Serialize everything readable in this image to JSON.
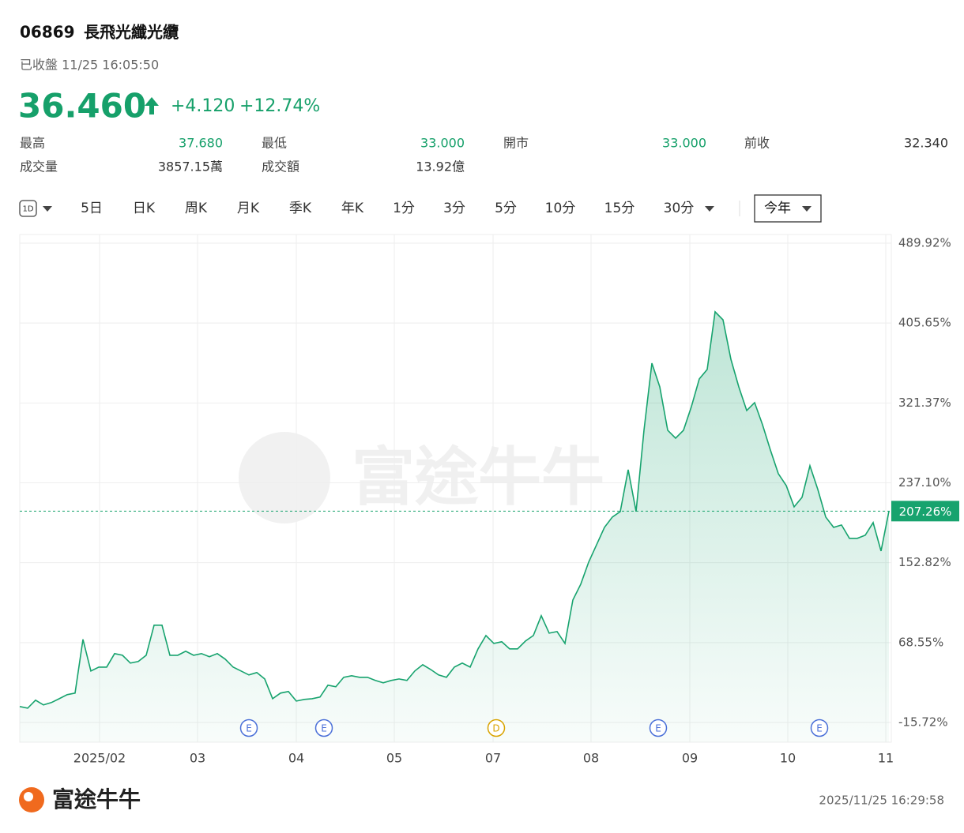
{
  "header": {
    "code": "06869",
    "name": "長飛光纖光纜",
    "status": "已收盤 11/25 16:05:50",
    "price": "36.460",
    "change": "+4.120",
    "change_pct": "+12.74%"
  },
  "stats": [
    {
      "label": "最高",
      "value": "37.680",
      "color": "#16a06a"
    },
    {
      "label": "最低",
      "value": "33.000",
      "color": "#16a06a"
    },
    {
      "label": "開市",
      "value": "33.000",
      "color": "#16a06a"
    },
    {
      "label": "前收",
      "value": "32.340",
      "color": "#333333"
    },
    {
      "label": "成交量",
      "value": "3857.15萬",
      "color": "#333333"
    },
    {
      "label": "成交額",
      "value": "13.92億",
      "color": "#333333"
    }
  ],
  "period_icon": "1D",
  "tabs": [
    "5日",
    "日K",
    "周K",
    "月K",
    "季K",
    "年K",
    "1分",
    "3分",
    "5分",
    "10分",
    "15分",
    "30分"
  ],
  "selected_tab": "今年",
  "watermark": "富途牛牛",
  "chart_data": {
    "type": "line",
    "color": "#17a36e",
    "values": [
      1.1,
      -0.6,
      7.8,
      2.8,
      5.3,
      9.4,
      13.6,
      15.3,
      71.9,
      38.6,
      42.7,
      42.7,
      56.9,
      55.2,
      46.9,
      48.6,
      55.2,
      86.9,
      86.9,
      55.2,
      55.2,
      59.4,
      55.2,
      56.9,
      53.6,
      56.9,
      51.1,
      42.7,
      38.6,
      34.4,
      36.9,
      30.2,
      9.4,
      15.3,
      16.9,
      6.9,
      8.6,
      9.4,
      11.1,
      23.6,
      21.9,
      31.9,
      33.6,
      31.9,
      31.9,
      28.6,
      26.1,
      28.6,
      30.2,
      28.6,
      38.6,
      45.2,
      40.2,
      34.4,
      31.9,
      42.7,
      46.9,
      42.7,
      61.9,
      76.0,
      67.7,
      69.4,
      61.9,
      61.9,
      70.2,
      76.0,
      96.9,
      78.5,
      80.2,
      67.7,
      113.5,
      130.2,
      153.5,
      171.8,
      190.1,
      201.0,
      206.8,
      250.9,
      206.8,
      292.6,
      363.3,
      338.3,
      292.6,
      284.2,
      292.6,
      317.5,
      346.7,
      356.7,
      417.5,
      409.1,
      367.5,
      338.3,
      313.4,
      321.7,
      298.4,
      271.7,
      246.8,
      234.3,
      211.8,
      221.8,
      255.1,
      230.1,
      201.0,
      190.1,
      192.6,
      178.5,
      178.5,
      181.8,
      195.1,
      165.1,
      207.26
    ],
    "xlim": [
      0,
      110
    ],
    "xticks": [
      {
        "value": 10.1,
        "label": "2025/02"
      },
      {
        "value": 22.5,
        "label": "03"
      },
      {
        "value": 35,
        "label": "04"
      },
      {
        "value": 47.4,
        "label": "05"
      },
      {
        "value": 59.9,
        "label": "07"
      },
      {
        "value": 72.3,
        "label": "08"
      },
      {
        "value": 84.8,
        "label": "09"
      },
      {
        "value": 97.2,
        "label": "10"
      },
      {
        "value": 109.6,
        "label": "11"
      }
    ],
    "ylim": [
      -36.54,
      499.08
    ],
    "yticks": [
      {
        "value": 489.92,
        "label": "489.92%"
      },
      {
        "value": 405.65,
        "label": "405.65%"
      },
      {
        "value": 321.37,
        "label": "321.37%"
      },
      {
        "value": 237.1,
        "label": "237.10%"
      },
      {
        "value": 152.82,
        "label": "152.82%"
      },
      {
        "value": 68.55,
        "label": "68.55%"
      },
      {
        "value": -15.72,
        "label": "-15.72%"
      }
    ],
    "current": {
      "value": 207.26,
      "label": "207.26%",
      "color": "#17a36e"
    },
    "events": [
      {
        "label": "E",
        "index": 29,
        "color": "#4a6fd8"
      },
      {
        "label": "E",
        "index": 38.5,
        "color": "#4a6fd8"
      },
      {
        "label": "D",
        "index": 60.3,
        "color": "#d9a300"
      },
      {
        "label": "E",
        "index": 80.8,
        "color": "#4a6fd8"
      },
      {
        "label": "E",
        "index": 101.2,
        "color": "#4a6fd8"
      }
    ],
    "grid": true
  },
  "footer": {
    "brand": "富途牛牛",
    "timestamp": "2025/11/25 16:29:58"
  }
}
